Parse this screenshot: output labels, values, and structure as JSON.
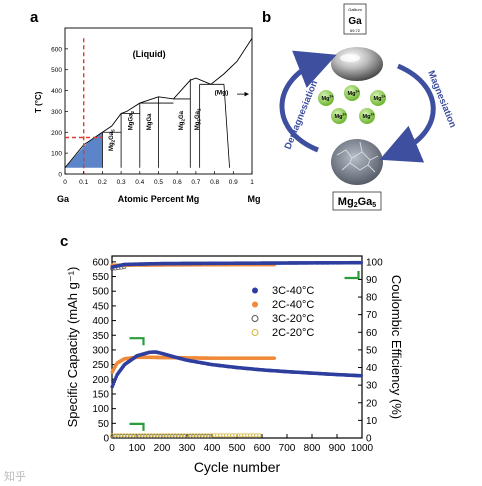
{
  "panels": {
    "a": "a",
    "b": "b",
    "c": "c"
  },
  "watermark": "知乎",
  "phase": {
    "ylabel": "T (°C)",
    "xlabel": "Atomic Percent Mg",
    "left_element": "Ga",
    "right_element": "Mg",
    "liquid_label": "(Liquid)",
    "mg_label": "(Mg)",
    "xticks": [
      0,
      0.1,
      0.2,
      0.3,
      0.4,
      0.5,
      0.6,
      0.7,
      0.8,
      0.9,
      1
    ],
    "xtick_labels": [
      "0",
      "0.1",
      "0.2",
      "0.3",
      "0.4",
      "0.5",
      "0.6",
      "0.7",
      "0.8",
      "0.9",
      "1"
    ],
    "yticks": [
      0,
      100,
      200,
      300,
      400,
      500,
      600
    ],
    "ytick_labels": [
      "0",
      "100",
      "200",
      "300",
      "400",
      "500",
      "600"
    ],
    "ylim": [
      0,
      700
    ],
    "dashed_x": 0.1,
    "dashed_y": 175,
    "phases": [
      {
        "label": "Mg2Ga5",
        "x": 0.26,
        "top": 200
      },
      {
        "label": "MgGa2",
        "x": 0.33,
        "top": 290
      },
      {
        "label": "MgGa",
        "x": 0.5,
        "top": 370
      },
      {
        "label": "Mg2Ga",
        "x": 0.67,
        "top": 455
      },
      {
        "label": "Mg5Ga2",
        "x": 0.71,
        "top": 430
      }
    ],
    "phase_labels": [
      {
        "base": "Mg",
        "sub": "2",
        "rest": "Ga",
        "sub2": "5"
      },
      {
        "base": "MgGa",
        "sub": "2",
        "rest": "",
        "sub2": ""
      },
      {
        "base": "MgGa",
        "sub": "",
        "rest": "",
        "sub2": ""
      },
      {
        "base": "Mg",
        "sub": "2",
        "rest": "Ga",
        "sub2": ""
      },
      {
        "base": "Mg",
        "sub": "5",
        "rest": "Ga",
        "sub2": "2"
      }
    ]
  },
  "schematic": {
    "ga_tile_top": "Gallium",
    "ga_tile_symbol": "Ga",
    "ga_tile_bottom": "69.72",
    "left_arrow": "Demagnesiation",
    "right_arrow": "Magnesiation",
    "ion_label": "Mg",
    "ion_charge": "2+",
    "product_base": "Mg",
    "product_sub1": "2",
    "product_mid": "Ga",
    "product_sub2": "5",
    "colors": {
      "ion": "#7bc43c",
      "arrow": "#3e4fa0"
    }
  },
  "chart_data": {
    "type": "scatter",
    "xlabel": "Cycle number",
    "ylabel": "Specific Capacity (mAh g⁻¹)",
    "y2label": "Coulombic Efficiency (%)",
    "xlim": [
      0,
      1000
    ],
    "ylim": [
      0,
      620
    ],
    "y2lim": [
      0,
      103.3
    ],
    "xticks": [
      0,
      100,
      200,
      300,
      400,
      500,
      600,
      700,
      800,
      900,
      1000
    ],
    "yticks": [
      0,
      50,
      100,
      150,
      200,
      250,
      300,
      350,
      400,
      450,
      500,
      550,
      600
    ],
    "y2ticks": [
      0,
      10,
      20,
      30,
      40,
      50,
      60,
      70,
      80,
      90,
      100
    ],
    "legend_position": "right",
    "series": [
      {
        "name": "3C-40°C",
        "color": "#2f3f9e",
        "marker": "filled",
        "capacity": [
          [
            1,
            175
          ],
          [
            20,
            215
          ],
          [
            50,
            250
          ],
          [
            100,
            280
          ],
          [
            150,
            292
          ],
          [
            175,
            293
          ],
          [
            200,
            288
          ],
          [
            250,
            276
          ],
          [
            300,
            265
          ],
          [
            400,
            250
          ],
          [
            500,
            240
          ],
          [
            600,
            232
          ],
          [
            700,
            226
          ],
          [
            800,
            221
          ],
          [
            900,
            216
          ],
          [
            1000,
            212
          ]
        ],
        "efficiency": [
          [
            1,
            97
          ],
          [
            50,
            98.5
          ],
          [
            200,
            99
          ],
          [
            500,
            99.2
          ],
          [
            800,
            99.4
          ],
          [
            1000,
            99.5
          ]
        ]
      },
      {
        "name": "2C-40°C",
        "color": "#f08a3a",
        "marker": "filled",
        "capacity": [
          [
            1,
            225
          ],
          [
            20,
            255
          ],
          [
            50,
            270
          ],
          [
            100,
            275
          ],
          [
            150,
            275
          ],
          [
            200,
            274
          ],
          [
            300,
            273
          ],
          [
            400,
            272
          ],
          [
            500,
            272
          ],
          [
            600,
            272
          ],
          [
            650,
            272
          ]
        ],
        "efficiency": [
          [
            1,
            98
          ],
          [
            100,
            98.2
          ],
          [
            300,
            98.3
          ],
          [
            500,
            98.4
          ],
          [
            650,
            98.4
          ]
        ]
      },
      {
        "name": "3C-20°C",
        "color": "#555555",
        "marker": "open",
        "capacity": [
          [
            1,
            6
          ],
          [
            100,
            6
          ],
          [
            200,
            6
          ],
          [
            300,
            6
          ],
          [
            400,
            6
          ]
        ],
        "efficiency": [
          [
            1,
            96
          ],
          [
            50,
            97
          ]
        ]
      },
      {
        "name": "2C-20°C",
        "color": "#d4b63a",
        "marker": "open",
        "capacity": [
          [
            1,
            9
          ],
          [
            100,
            9
          ],
          [
            200,
            9
          ],
          [
            300,
            9
          ],
          [
            400,
            9
          ],
          [
            500,
            9
          ],
          [
            600,
            9
          ]
        ],
        "efficiency": [
          [
            1,
            98
          ],
          [
            50,
            98
          ]
        ]
      }
    ]
  }
}
